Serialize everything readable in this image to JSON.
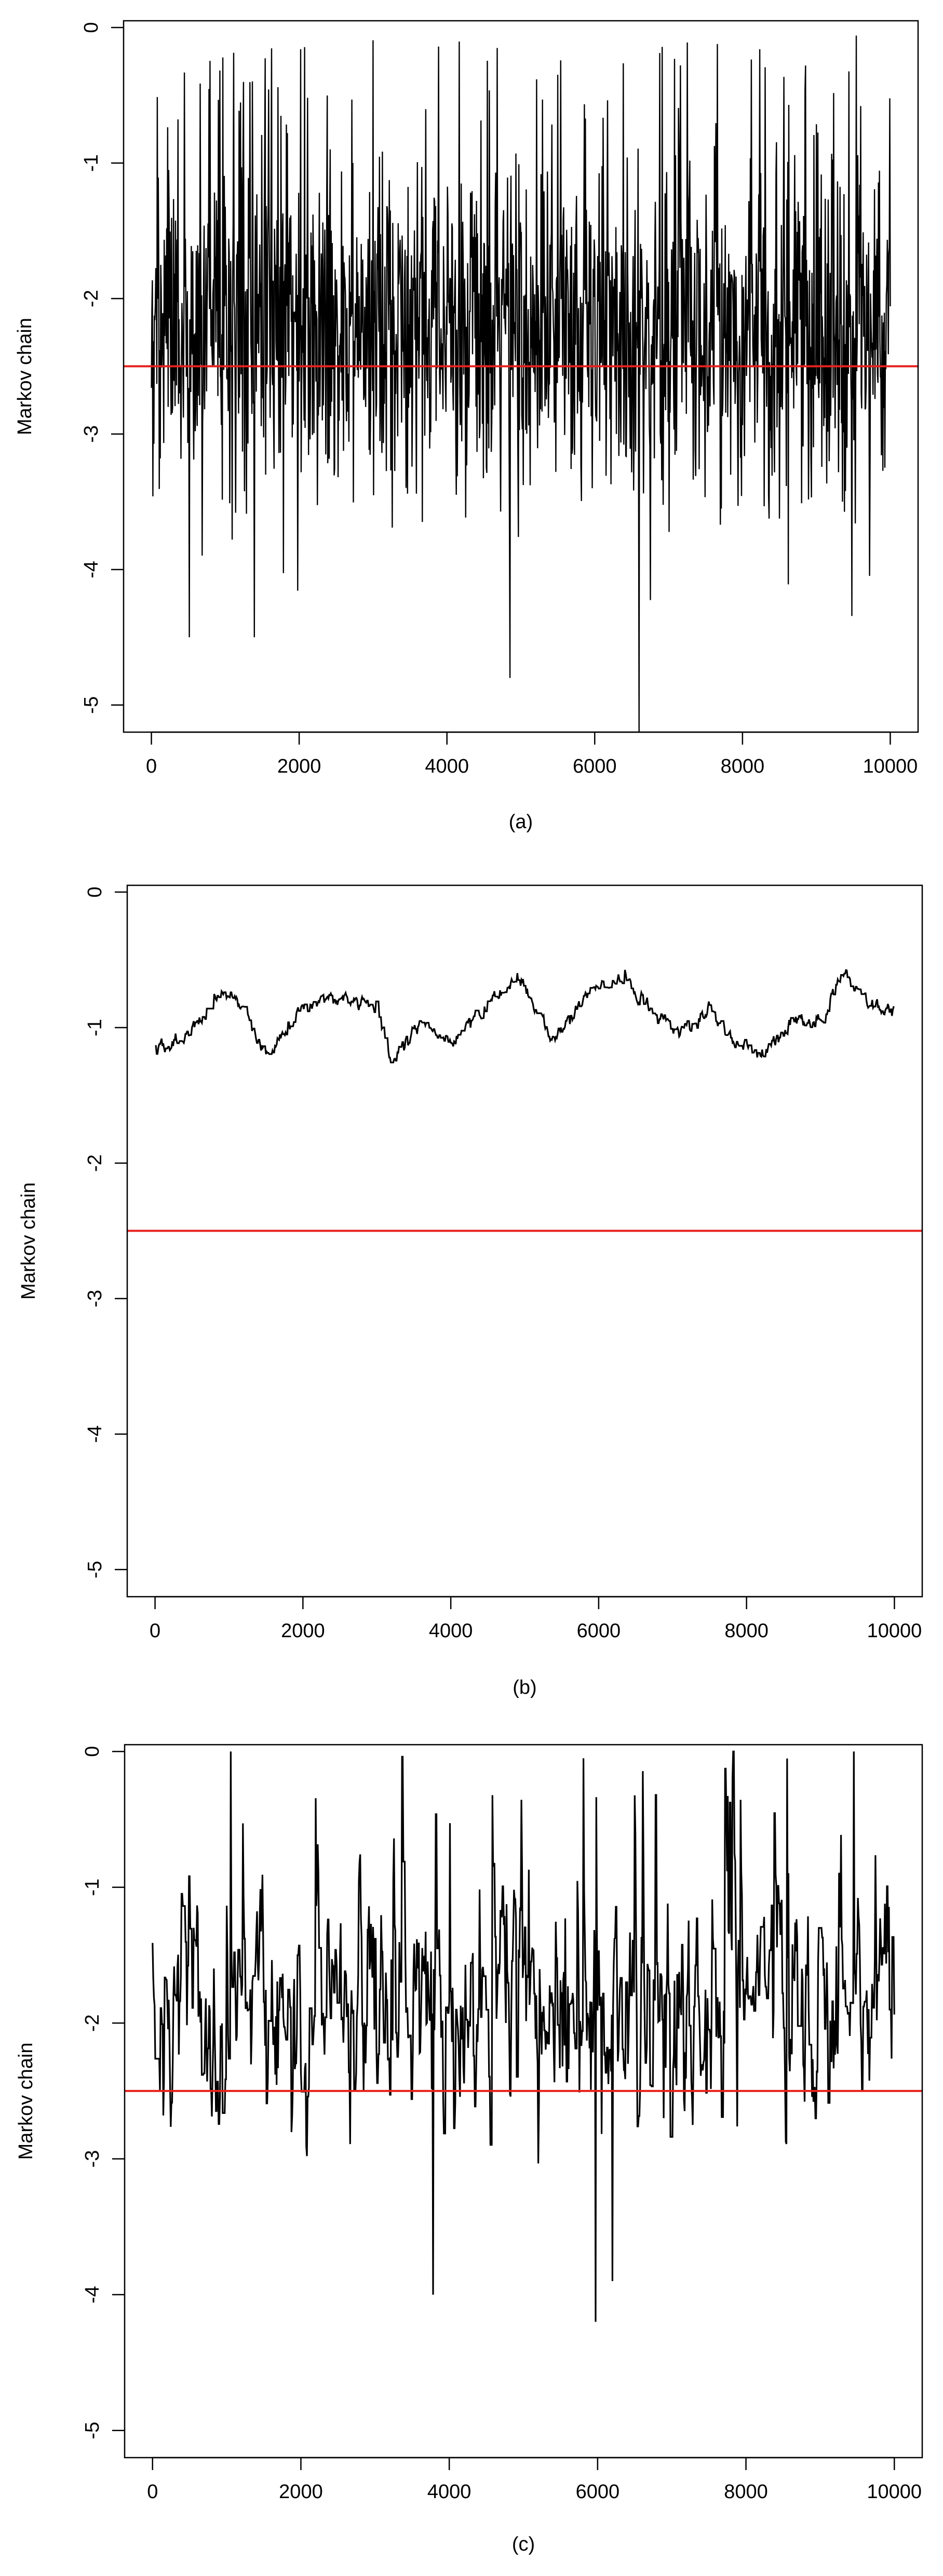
{
  "colors": {
    "trace": "#000000",
    "reference": "#e8211d",
    "frame": "#000000",
    "background": "#ffffff"
  },
  "chart_data": [
    {
      "type": "line",
      "panel_label": "(a)",
      "ylabel": "Markov chain",
      "xlabel": "",
      "title": "",
      "xlim": [
        0,
        10000
      ],
      "ylim": [
        -5.2,
        0.05
      ],
      "xticks": [
        0,
        2000,
        4000,
        6000,
        8000,
        10000
      ],
      "yticks": [
        0,
        -1,
        -2,
        -3,
        -4,
        -5
      ],
      "reference_line": -2.5,
      "grid": false,
      "legend": "none",
      "trace_style": "white-noise",
      "trace": {
        "n_iterations": 10000,
        "center": -2.25,
        "range_min": -5.2,
        "range_max": 0,
        "notable_points": [
          {
            "x": 510,
            "y": -4.5
          },
          {
            "x": 1390,
            "y": -4.5
          },
          {
            "x": 4850,
            "y": -4.8
          },
          {
            "x": 6600,
            "y": -5.2
          }
        ]
      }
    },
    {
      "type": "line",
      "panel_label": "(b)",
      "ylabel": "Markov chain",
      "xlabel": "",
      "title": "",
      "xlim": [
        0,
        10000
      ],
      "ylim": [
        -5.2,
        0.05
      ],
      "xticks": [
        0,
        2000,
        4000,
        6000,
        8000,
        10000
      ],
      "yticks": [
        0,
        -1,
        -2,
        -3,
        -4,
        -5
      ],
      "reference_line": -2.5,
      "grid": false,
      "legend": "none",
      "trace_style": "slow-mixing",
      "trace": {
        "n_iterations": 10000,
        "anchors": [
          {
            "x": 0,
            "y": -1.15
          },
          {
            "x": 400,
            "y": -1.1
          },
          {
            "x": 900,
            "y": -0.7
          },
          {
            "x": 1200,
            "y": -0.85
          },
          {
            "x": 1500,
            "y": -1.2
          },
          {
            "x": 2000,
            "y": -0.85
          },
          {
            "x": 2500,
            "y": -0.8
          },
          {
            "x": 3000,
            "y": -0.85
          },
          {
            "x": 3200,
            "y": -1.25
          },
          {
            "x": 3600,
            "y": -0.95
          },
          {
            "x": 4000,
            "y": -1.1
          },
          {
            "x": 4500,
            "y": -0.85
          },
          {
            "x": 4900,
            "y": -0.6
          },
          {
            "x": 5400,
            "y": -1.1
          },
          {
            "x": 5900,
            "y": -0.7
          },
          {
            "x": 6300,
            "y": -0.6
          },
          {
            "x": 6700,
            "y": -0.85
          },
          {
            "x": 7100,
            "y": -1.05
          },
          {
            "x": 7500,
            "y": -0.85
          },
          {
            "x": 7800,
            "y": -1.1
          },
          {
            "x": 8200,
            "y": -1.2
          },
          {
            "x": 8600,
            "y": -0.95
          },
          {
            "x": 9000,
            "y": -0.95
          },
          {
            "x": 9300,
            "y": -0.6
          },
          {
            "x": 9700,
            "y": -0.85
          },
          {
            "x": 10000,
            "y": -0.9
          }
        ]
      }
    },
    {
      "type": "line",
      "panel_label": "(c)",
      "ylabel": "Markov chain",
      "xlabel": "",
      "title": "",
      "xlim": [
        0,
        10000
      ],
      "ylim": [
        -5.2,
        0.05
      ],
      "xticks": [
        0,
        2000,
        4000,
        6000,
        8000,
        10000
      ],
      "yticks": [
        0,
        -1,
        -2,
        -3,
        -4,
        -5
      ],
      "reference_line": -2.5,
      "grid": false,
      "legend": "none",
      "trace_style": "moderate-mixing",
      "trace": {
        "n_iterations": 10000,
        "center": -1.9,
        "range_min": -4.2,
        "range_max": 0,
        "notable_points": [
          {
            "x": 1050,
            "y": 0
          },
          {
            "x": 3780,
            "y": -4.0
          },
          {
            "x": 5970,
            "y": -4.2
          },
          {
            "x": 6200,
            "y": -3.9
          },
          {
            "x": 9450,
            "y": 0
          }
        ]
      }
    }
  ]
}
